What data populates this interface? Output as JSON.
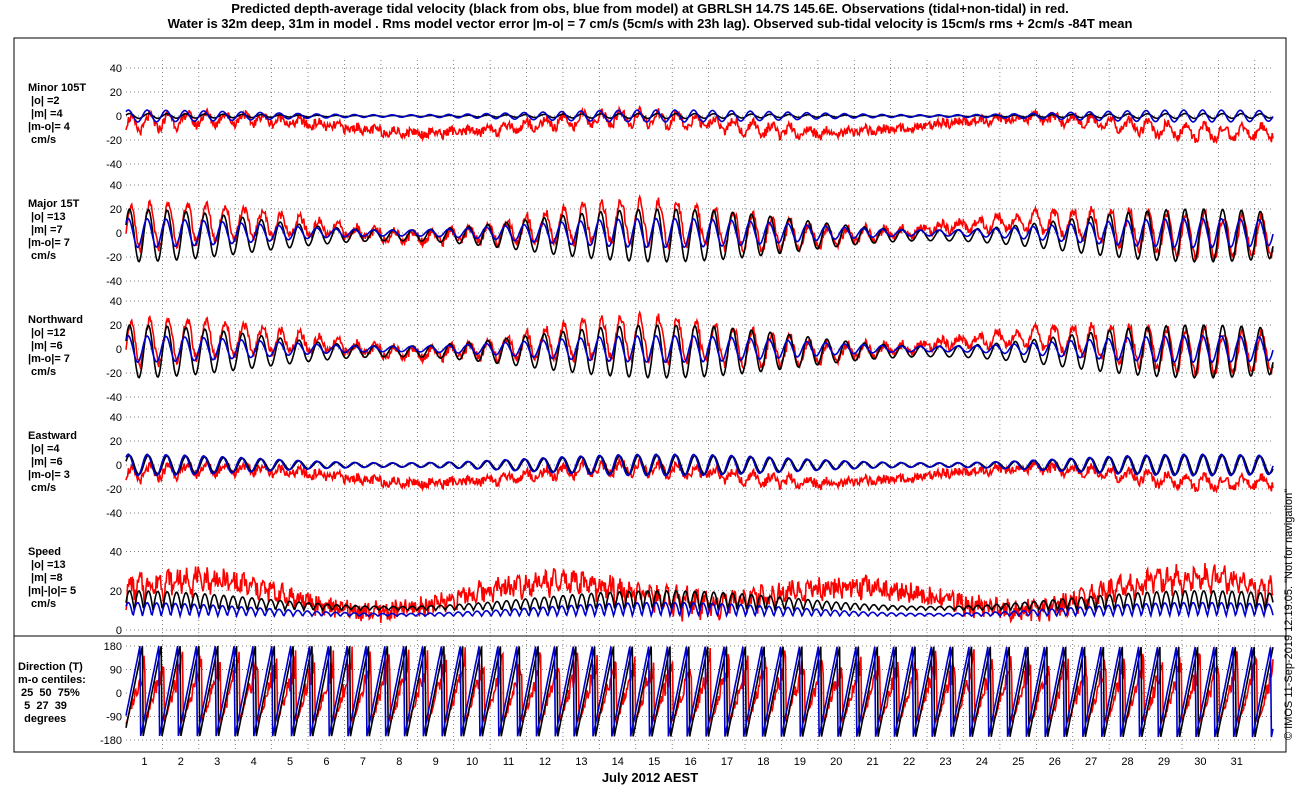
{
  "title_line1": "Predicted depth-average tidal velocity (black from obs, blue from model) at GBRLSH 14.7S 145.6E. Observations (tidal+non-tidal) in red.",
  "title_line2": "Water is 32m deep, 31m in model . Rms model vector error |m-o| = 7 cm/s (5cm/s with 23h lag). Observed sub-tidal velocity is 15cm/s rms + 2cm/s -84T mean",
  "xlabel": "July 2012 AEST",
  "credit": "© IMOS 11-Sep-2019 12:19:05. \"Not for navigation\"",
  "chart_data": [
    {
      "type": "line",
      "panel": "Minor 105T",
      "label_lines": [
        "Minor 105T",
        " |o| =2",
        " |m| =4",
        "|m-o|= 4",
        " cm/s"
      ],
      "yticks": [
        "40",
        "20",
        "0",
        "-20",
        "-40"
      ],
      "ylim": [
        -40,
        40
      ],
      "x": [
        0,
        31.5
      ],
      "series": [
        {
          "color": "#ff0000",
          "amplitude": 6,
          "offset": -8,
          "values_desc": "observed"
        },
        {
          "color": "#000000",
          "amplitude": 2,
          "offset": 0
        },
        {
          "color": "#0000cc",
          "amplitude": 5,
          "offset": 0
        }
      ]
    },
    {
      "type": "line",
      "panel": "Major 15T",
      "label_lines": [
        "Major 15T",
        " |o| =13",
        " |m| =7",
        "|m-o|= 7",
        " cm/s"
      ],
      "yticks": [
        "40",
        "20",
        "0",
        "-20",
        "-40"
      ],
      "ylim": [
        -40,
        40
      ],
      "x": [
        0,
        31.5
      ],
      "series": [
        {
          "color": "#ff0000",
          "amplitude": 18,
          "offset": 3
        },
        {
          "color": "#000000",
          "amplitude": 22,
          "offset": -2
        },
        {
          "color": "#0000cc",
          "amplitude": 12,
          "offset": 0
        }
      ]
    },
    {
      "type": "line",
      "panel": "Northward",
      "label_lines": [
        "Northward",
        " |o| =12",
        " |m| =6",
        "|m-o|= 7",
        " cm/s"
      ],
      "yticks": [
        "40",
        "20",
        "0",
        "-20",
        "-40"
      ],
      "ylim": [
        -40,
        40
      ],
      "x": [
        0,
        31.5
      ],
      "series": [
        {
          "color": "#ff0000",
          "amplitude": 18,
          "offset": 3
        },
        {
          "color": "#000000",
          "amplitude": 22,
          "offset": -2
        },
        {
          "color": "#0000cc",
          "amplitude": 11,
          "offset": 0
        }
      ]
    },
    {
      "type": "line",
      "panel": "Eastward",
      "label_lines": [
        "Eastward",
        " |o| =4",
        " |m| =6",
        "|m-o|= 3",
        " cm/s"
      ],
      "yticks": [
        "40",
        "20",
        "0",
        "-20",
        "-40"
      ],
      "ylim": [
        -40,
        40
      ],
      "x": [
        0,
        31.5
      ],
      "series": [
        {
          "color": "#ff0000",
          "amplitude": 5,
          "offset": -9
        },
        {
          "color": "#000000",
          "amplitude": 8,
          "offset": 0
        },
        {
          "color": "#0000cc",
          "amplitude": 9,
          "offset": 0
        }
      ]
    },
    {
      "type": "line",
      "panel": "Speed",
      "label_lines": [
        "Speed",
        " |o| =13",
        " |m| =8",
        "|m|-|o|= 5",
        " cm/s"
      ],
      "yticks": [
        "40",
        "20",
        "0"
      ],
      "ylim": [
        0,
        50
      ],
      "x": [
        0,
        31.5
      ],
      "series": [
        {
          "color": "#ff0000",
          "amplitude": 10,
          "offset": 14
        },
        {
          "color": "#000000",
          "amplitude": 10,
          "offset": 10
        },
        {
          "color": "#0000cc",
          "amplitude": 7,
          "offset": 7
        }
      ]
    },
    {
      "type": "line",
      "panel": "Direction",
      "label_lines": [
        "Direction (T)",
        "m-o centiles:",
        " 25  50  75%",
        "  5  27  39",
        "  degrees"
      ],
      "yticks": [
        "180",
        "90",
        "0",
        "-90",
        "-180"
      ],
      "ylim": [
        -180,
        180
      ],
      "x": [
        0,
        31.5
      ],
      "series": [
        {
          "color": "#ff0000"
        },
        {
          "color": "#000000"
        },
        {
          "color": "#0000cc"
        }
      ]
    }
  ],
  "xticks": [
    "1",
    "2",
    "3",
    "4",
    "5",
    "6",
    "7",
    "8",
    "9",
    "10",
    "11",
    "12",
    "13",
    "14",
    "15",
    "16",
    "17",
    "18",
    "19",
    "20",
    "21",
    "22",
    "23",
    "24",
    "25",
    "26",
    "27",
    "28",
    "29",
    "30",
    "31"
  ]
}
